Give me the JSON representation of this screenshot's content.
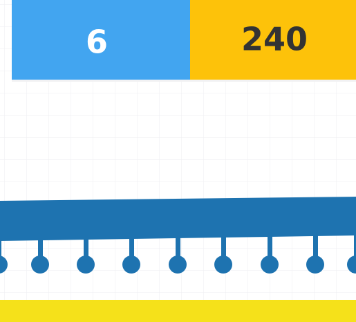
{
  "score_panel": {
    "left": "6",
    "right": "240"
  }
}
